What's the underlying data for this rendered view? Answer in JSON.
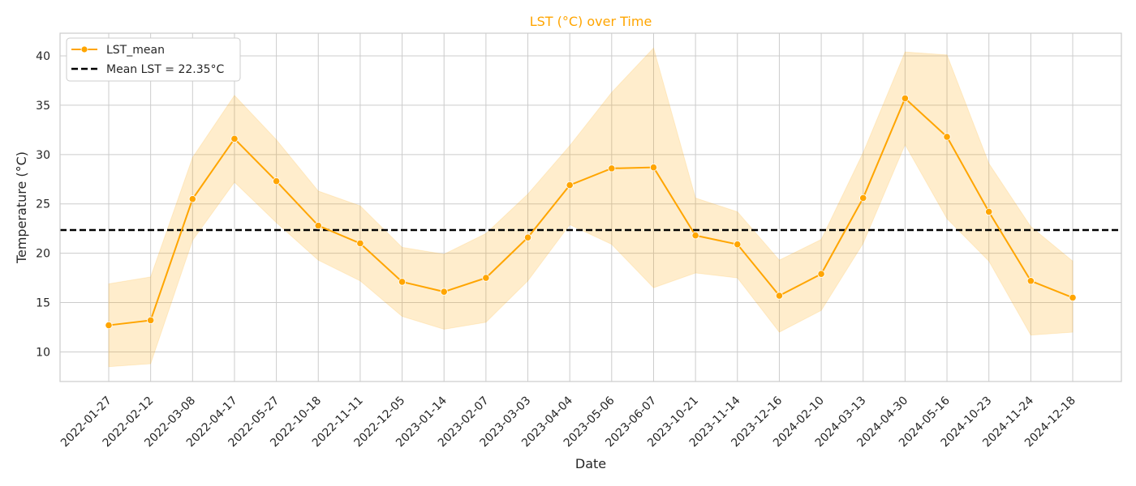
{
  "chart_data": {
    "type": "line",
    "title": "LST (°C) over Time",
    "title_color": "#FFA500",
    "xlabel": "Date",
    "ylabel": "Temperature (°C)",
    "x_type": "category",
    "categories": [
      "2022-01-27",
      "2022-02-12",
      "2022-03-08",
      "2022-04-17",
      "2022-05-27",
      "2022-10-18",
      "2022-11-11",
      "2022-12-05",
      "2023-01-14",
      "2023-02-07",
      "2023-03-03",
      "2023-04-04",
      "2023-05-06",
      "2023-06-07",
      "2023-10-21",
      "2023-11-14",
      "2023-12-16",
      "2024-02-10",
      "2024-03-13",
      "2024-04-30",
      "2024-05-16",
      "2024-10-23",
      "2024-11-24",
      "2024-12-18"
    ],
    "series": [
      {
        "name": "LST_mean",
        "color": "#FFA500",
        "marker": "circle",
        "values": [
          12.7,
          13.2,
          25.5,
          31.6,
          27.3,
          22.8,
          21.0,
          17.1,
          16.1,
          17.5,
          21.6,
          26.9,
          28.6,
          28.7,
          21.8,
          20.9,
          15.7,
          17.9,
          25.6,
          35.7,
          31.8,
          24.2,
          17.2,
          15.5
        ],
        "band_upper": [
          16.9,
          17.6,
          29.7,
          36.0,
          31.5,
          26.3,
          24.8,
          20.6,
          19.9,
          22.0,
          26.0,
          30.9,
          36.3,
          40.8,
          25.6,
          24.2,
          19.3,
          21.4,
          30.2,
          40.4,
          40.1,
          29.1,
          22.7,
          19.2
        ],
        "band_lower": [
          8.5,
          8.8,
          21.3,
          27.2,
          23.1,
          19.3,
          17.2,
          13.6,
          12.3,
          13.0,
          17.2,
          22.9,
          20.9,
          16.5,
          18.0,
          17.5,
          12.0,
          14.2,
          21.0,
          31.0,
          23.5,
          19.2,
          11.7,
          12.0
        ],
        "band_color": "#FFA500"
      }
    ],
    "reference_line": {
      "label": "Mean LST = 22.35°C",
      "value": 22.35,
      "color": "#000000",
      "style": "dashed"
    },
    "ylim": [
      7.0,
      42.3
    ],
    "yticks": [
      10,
      15,
      20,
      25,
      30,
      35,
      40
    ],
    "grid": true,
    "legend_position": "top-left"
  }
}
